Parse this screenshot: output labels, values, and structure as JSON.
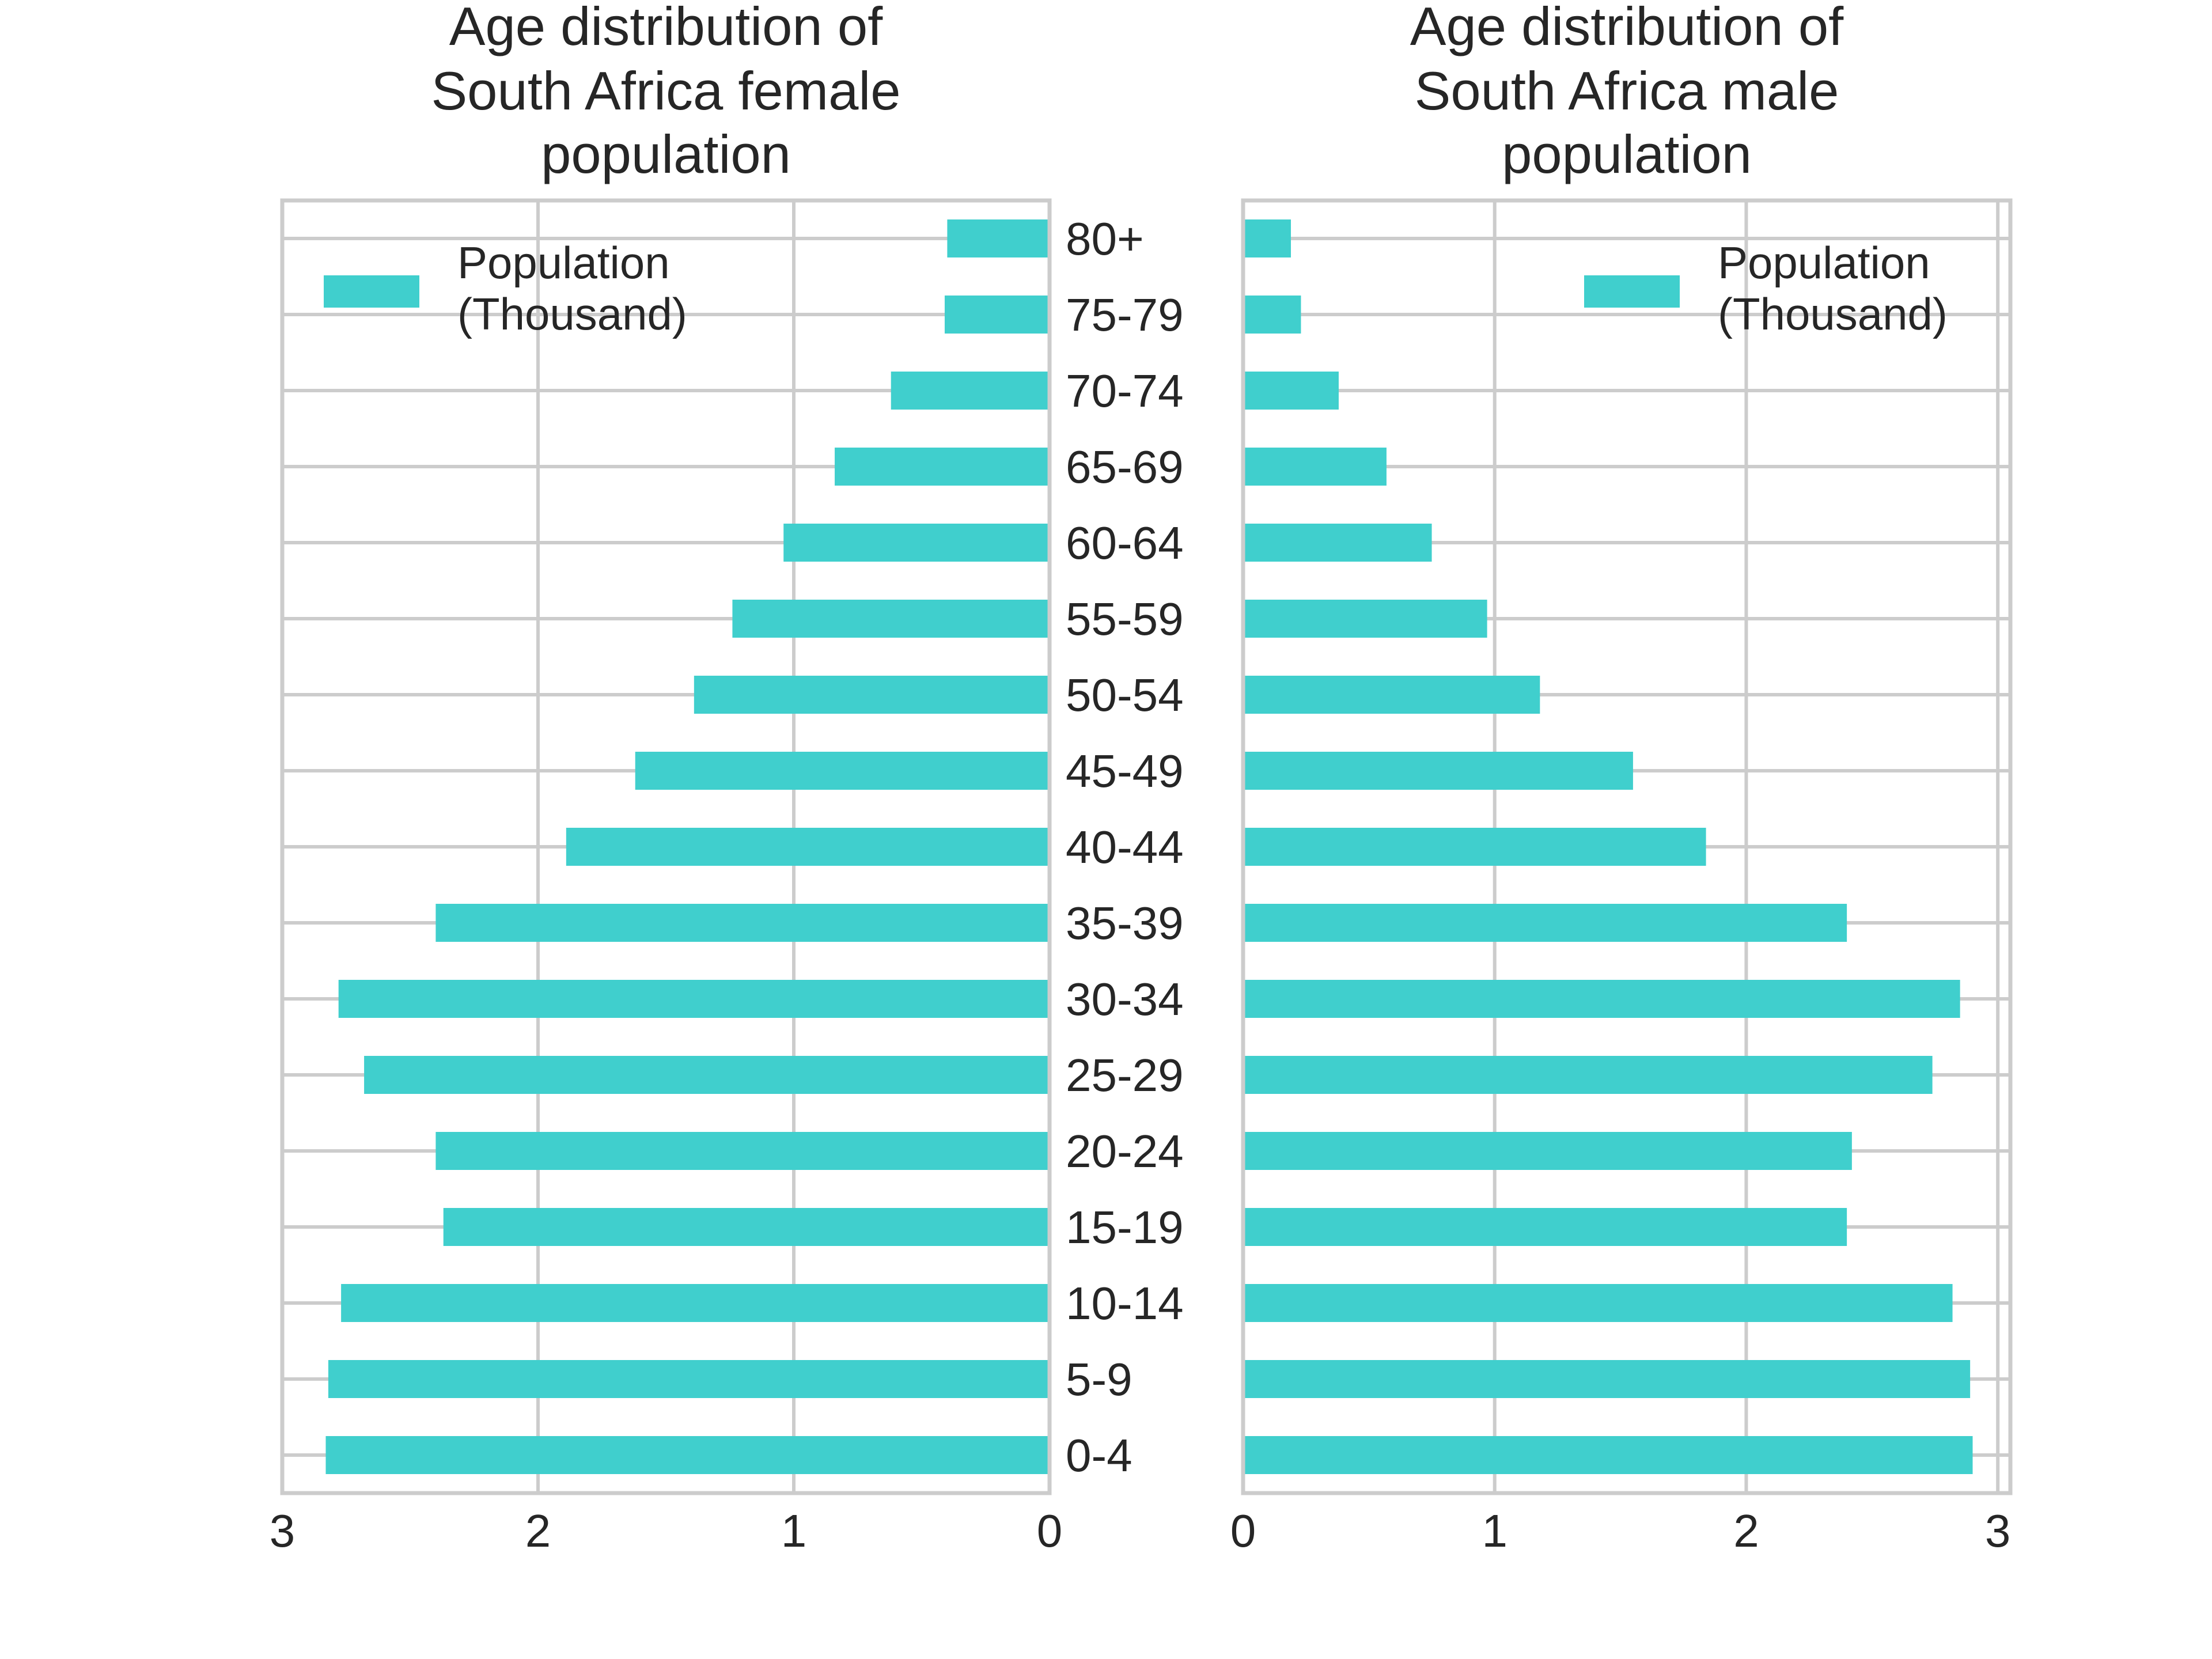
{
  "colors": {
    "bar": "#40CFCD",
    "grid": "#cccccc",
    "text": "#262626"
  },
  "chart_data": [
    {
      "type": "bar",
      "orientation": "horizontal",
      "direction": "reversed",
      "title_lines": [
        "Age distribution of",
        "South Africa female",
        "population"
      ],
      "categories": [
        "0-4",
        "5-9",
        "10-14",
        "15-19",
        "20-24",
        "25-29",
        "30-34",
        "35-39",
        "40-44",
        "45-49",
        "50-54",
        "55-59",
        "60-64",
        "65-69",
        "70-74",
        "75-79",
        "80+"
      ],
      "series": [
        {
          "name": "Population (Thousand)",
          "legend_lines": [
            "Population",
            "(Thousand)"
          ],
          "values": [
            2.83,
            2.82,
            2.77,
            2.37,
            2.4,
            2.68,
            2.78,
            2.4,
            1.89,
            1.62,
            1.39,
            1.24,
            1.04,
            0.84,
            0.62,
            0.41,
            0.4
          ]
        }
      ],
      "xlim": [
        3,
        0
      ],
      "xticks": [
        3,
        2,
        1,
        0
      ],
      "legend_position": "top-left",
      "grid": true
    },
    {
      "type": "bar",
      "orientation": "horizontal",
      "direction": "normal",
      "title_lines": [
        "Age distribution of",
        "South Africa male",
        "population"
      ],
      "categories": [
        "0-4",
        "5-9",
        "10-14",
        "15-19",
        "20-24",
        "25-29",
        "30-34",
        "35-39",
        "40-44",
        "45-49",
        "50-54",
        "55-59",
        "60-64",
        "65-69",
        "70-74",
        "75-79",
        "80+"
      ],
      "series": [
        {
          "name": "Population (Thousand)",
          "legend_lines": [
            "Population",
            "(Thousand)"
          ],
          "values": [
            2.9,
            2.89,
            2.82,
            2.4,
            2.42,
            2.74,
            2.85,
            2.4,
            1.84,
            1.55,
            1.18,
            0.97,
            0.75,
            0.57,
            0.38,
            0.23,
            0.19
          ]
        }
      ],
      "xlim": [
        0,
        3.05
      ],
      "xticks": [
        0,
        1,
        2,
        3
      ],
      "legend_position": "top-right",
      "grid": true
    }
  ]
}
